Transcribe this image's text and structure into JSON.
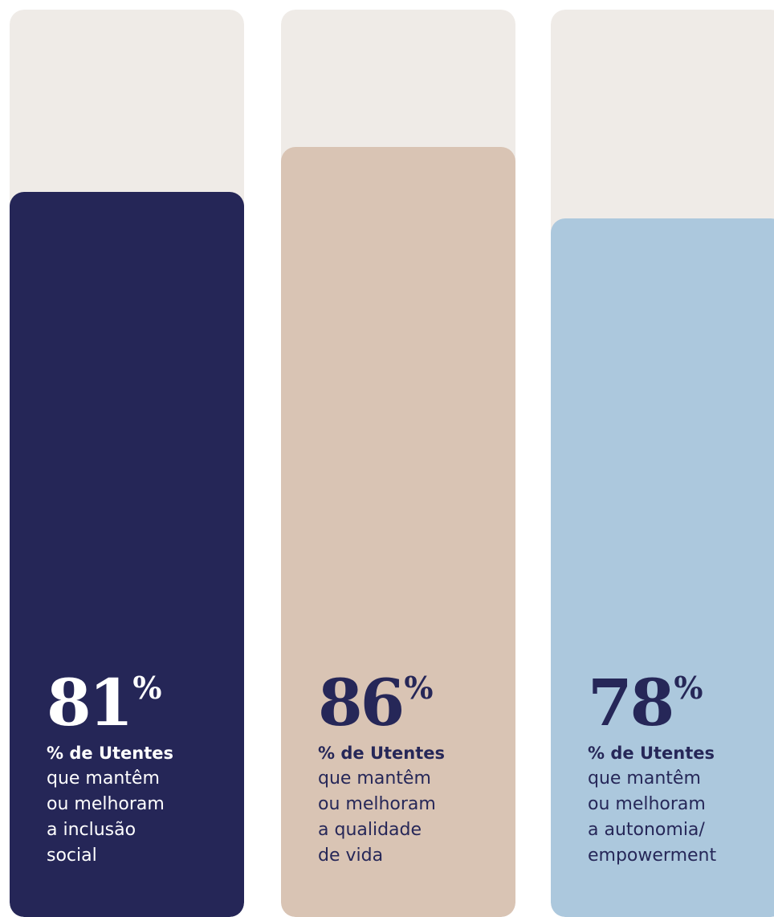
{
  "chart_data": {
    "type": "bar",
    "categories": [
      "inclusão social",
      "qualidade de vida",
      "autonomia/empowerment"
    ],
    "values": [
      81,
      86,
      78
    ],
    "ylim": [
      0,
      100
    ],
    "unit": "%",
    "colors": {
      "track": "#efebe7",
      "bars": [
        "#252657",
        "#d9c4b4",
        "#acc8dd"
      ],
      "text": [
        "#ffffff",
        "#262758",
        "#262758"
      ]
    }
  },
  "cards": [
    {
      "value": "81",
      "percent": "%",
      "label_strong": "% de Utentes",
      "lines": [
        "que mantêm",
        "ou melhoram",
        "a inclusão",
        "social"
      ]
    },
    {
      "value": "86",
      "percent": "%",
      "label_strong": "% de Utentes",
      "lines": [
        "que mantêm",
        "ou melhoram",
        "a qualidade",
        "de vida"
      ]
    },
    {
      "value": "78",
      "percent": "%",
      "label_strong": "% de Utentes",
      "lines": [
        "que mantêm",
        "ou melhoram",
        "a autonomia/",
        "empowerment"
      ]
    }
  ]
}
